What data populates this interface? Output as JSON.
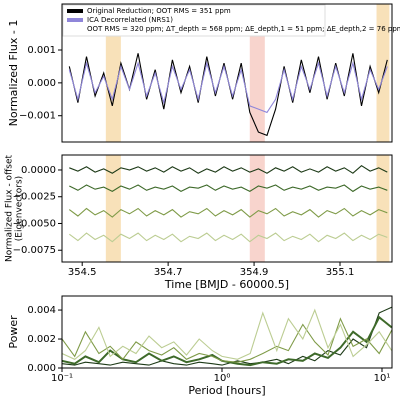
{
  "chart_data": [
    {
      "type": "line",
      "ylabel": "Normalized Flux - 1",
      "x": [
        354.47,
        354.49,
        354.51,
        354.53,
        354.55,
        354.57,
        354.59,
        354.61,
        354.63,
        354.65,
        354.67,
        354.69,
        354.71,
        354.73,
        354.75,
        354.77,
        354.79,
        354.81,
        354.83,
        354.85,
        354.87,
        354.89,
        354.91,
        354.93,
        354.95,
        354.97,
        354.99,
        355.01,
        355.03,
        355.05,
        355.07,
        355.09,
        355.11,
        355.13,
        355.15,
        355.17,
        355.19,
        355.21
      ],
      "series": [
        {
          "name": "Original Reduction; OOT RMS = 351 ppm",
          "color": "#000000",
          "values": [
            0.0005,
            -0.0006,
            0.0008,
            -0.0004,
            0.0003,
            -0.0007,
            0.0006,
            -0.0002,
            0.0009,
            -0.0005,
            0.0004,
            -0.0008,
            0.0007,
            -0.0003,
            0.0005,
            -0.0006,
            0.0008,
            -0.0004,
            0.0006,
            -0.0005,
            0.0006,
            -0.0009,
            -0.0015,
            -0.0016,
            -0.0008,
            0.0005,
            -0.0006,
            0.0007,
            -0.0003,
            0.0008,
            -0.0005,
            0.0006,
            -0.0004,
            0.0009,
            -0.0007,
            0.0005,
            -0.0003,
            0.0007
          ]
        },
        {
          "name": "ICA Decorrelated (NRS1)",
          "color": "#8f86d9",
          "values": [
            0.0004,
            -0.0005,
            0.0006,
            -0.0003,
            0.0002,
            -0.0005,
            0.0005,
            -0.0002,
            0.0006,
            -0.0004,
            0.0003,
            -0.0006,
            0.0005,
            -0.0002,
            0.0004,
            -0.0005,
            0.0006,
            -0.0003,
            0.0005,
            -0.0004,
            0.0004,
            -0.0007,
            -0.0008,
            -0.0009,
            -0.0005,
            0.0004,
            -0.0005,
            0.0005,
            -0.0002,
            0.0006,
            -0.0004,
            0.0005,
            -0.0003,
            0.0006,
            -0.0005,
            0.0004,
            -0.0002,
            0.0005
          ]
        }
      ],
      "legend_note": "OOT RMS = 320 ppm; ΔT_depth = 568 ppm; ΔE_depth,1 = 51 ppm; ΔE_depth,2 = 76 ppm",
      "highlights": [
        {
          "xlim": [
            354.555,
            354.59
          ],
          "color": "#f6d9a8"
        },
        {
          "xlim": [
            354.89,
            354.925
          ],
          "color": "#f6c9c0"
        },
        {
          "xlim": [
            355.185,
            355.215
          ],
          "color": "#f6d9a8"
        }
      ],
      "xlim": [
        354.453,
        355.221
      ],
      "ylim": [
        -0.0018,
        0.0024
      ],
      "yticks": [
        {
          "value": -0.001,
          "label": "−0.001"
        },
        {
          "value": 0,
          "label": "0.000"
        },
        {
          "value": 0.001,
          "label": "0.001"
        }
      ]
    },
    {
      "type": "line",
      "ylabel": [
        "Normalized Flux - offset",
        "(Eigenvectors)"
      ],
      "xlabel": "Time [BMJD - 60000.5]",
      "x": [
        354.47,
        354.49,
        354.51,
        354.53,
        354.55,
        354.57,
        354.59,
        354.61,
        354.63,
        354.65,
        354.67,
        354.69,
        354.71,
        354.73,
        354.75,
        354.77,
        354.79,
        354.81,
        354.83,
        354.85,
        354.87,
        354.89,
        354.91,
        354.93,
        354.95,
        354.97,
        354.99,
        355.01,
        355.03,
        355.05,
        355.07,
        355.09,
        355.11,
        355.13,
        355.15,
        355.17,
        355.19,
        355.21
      ],
      "series": [
        {
          "color": "#1d3a17",
          "values": [
            0.0002,
            -0.0001,
            0.0003,
            -0.0002,
            0.0001,
            -0.0003,
            0.0002,
            0,
            0.0003,
            -0.0001,
            0.0002,
            -0.0002,
            0.0003,
            -0.0001,
            0.0002,
            -0.0003,
            0.0001,
            -0.0002,
            0.0003,
            -0.0001,
            0.0002,
            -0.0002,
            0.0001,
            -0.0003,
            0.0002,
            -0.0001,
            0.0003,
            -0.0002,
            0.0001,
            -0.0002,
            0.0003,
            -0.0001,
            0.0002,
            -0.0003,
            0.0004,
            -0.0001,
            0.0002,
            -0.0002
          ]
        },
        {
          "color": "#3e6a2a",
          "values": [
            -0.0015,
            -0.0019,
            -0.0014,
            -0.0018,
            -0.0016,
            -0.002,
            -0.0015,
            -0.0018,
            -0.0014,
            -0.0019,
            -0.0016,
            -0.0018,
            -0.0015,
            -0.002,
            -0.0016,
            -0.0017,
            -0.0014,
            -0.0019,
            -0.0015,
            -0.0018,
            -0.0016,
            -0.002,
            -0.0015,
            -0.0017,
            -0.0014,
            -0.0019,
            -0.0016,
            -0.0018,
            -0.0015,
            -0.0019,
            -0.0016,
            -0.0017,
            -0.0014,
            -0.002,
            -0.0015,
            -0.0018,
            -0.0016,
            -0.0019
          ]
        },
        {
          "color": "#7f9b48",
          "values": [
            -0.0037,
            -0.0043,
            -0.0036,
            -0.0042,
            -0.0038,
            -0.0044,
            -0.0037,
            -0.0041,
            -0.0036,
            -0.0043,
            -0.0038,
            -0.0042,
            -0.0037,
            -0.0044,
            -0.0039,
            -0.0041,
            -0.0036,
            -0.0043,
            -0.0038,
            -0.0042,
            -0.0037,
            -0.0044,
            -0.0038,
            -0.0041,
            -0.0036,
            -0.0043,
            -0.0039,
            -0.0042,
            -0.0037,
            -0.0044,
            -0.0038,
            -0.0041,
            -0.0036,
            -0.0043,
            -0.0038,
            -0.0042,
            -0.0037,
            -0.004
          ]
        },
        {
          "color": "#bccd93",
          "values": [
            -0.006,
            -0.0066,
            -0.0059,
            -0.0065,
            -0.0061,
            -0.0067,
            -0.006,
            -0.0064,
            -0.0059,
            -0.0066,
            -0.0061,
            -0.0065,
            -0.006,
            -0.0067,
            -0.0062,
            -0.0064,
            -0.0059,
            -0.0066,
            -0.0061,
            -0.0065,
            -0.006,
            -0.0067,
            -0.0061,
            -0.0064,
            -0.0059,
            -0.0066,
            -0.0062,
            -0.0065,
            -0.006,
            -0.0067,
            -0.0061,
            -0.0064,
            -0.0059,
            -0.0066,
            -0.0061,
            -0.0065,
            -0.006,
            -0.0063
          ]
        }
      ],
      "highlights": [
        {
          "xlim": [
            354.555,
            354.59
          ],
          "color": "#f6d9a8"
        },
        {
          "xlim": [
            354.89,
            354.925
          ],
          "color": "#f6c9c0"
        },
        {
          "xlim": [
            355.185,
            355.215
          ],
          "color": "#f6d9a8"
        }
      ],
      "xlim": [
        354.453,
        355.221
      ],
      "ylim": [
        -0.0086,
        0.0014
      ],
      "xticks": [
        354.5,
        354.7,
        354.9,
        355.1
      ],
      "yticks": [
        {
          "value": 0,
          "label": "0.0000"
        },
        {
          "value": -0.0025,
          "label": "−0.0025"
        },
        {
          "value": -0.005,
          "label": "−0.0050"
        },
        {
          "value": -0.0075,
          "label": "−0.0075"
        }
      ]
    },
    {
      "type": "line",
      "ylabel": "Power",
      "xlabel": "Period [hours]",
      "xscale": "log",
      "x": [
        0.1,
        0.12,
        0.14,
        0.17,
        0.2,
        0.24,
        0.29,
        0.35,
        0.42,
        0.5,
        0.6,
        0.72,
        0.87,
        1.0,
        1.25,
        1.5,
        1.8,
        2.2,
        2.6,
        3.2,
        3.8,
        4.6,
        5.5,
        6.6,
        8,
        9.6,
        11.5
      ],
      "series": [
        {
          "color": "#1d3a17",
          "values": [
            0.0003,
            0.0002,
            0.0004,
            0.0003,
            0.0002,
            0.0004,
            0.0003,
            0.0002,
            0.0005,
            0.0003,
            0.0002,
            0.0004,
            0.0003,
            0.0002,
            0.0005,
            0.0003,
            0.0004,
            0.0006,
            0.0003,
            0.0008,
            0.0005,
            0.0012,
            0.0009,
            0.002,
            0.0014,
            0.0038,
            0.0042
          ]
        },
        {
          "color": "#3e6a2a",
          "values": [
            0.0005,
            0.0003,
            0.0008,
            0.0004,
            0.0012,
            0.0006,
            0.0004,
            0.001,
            0.0005,
            0.0008,
            0.0004,
            0.0006,
            0.0009,
            0.0005,
            0.0003,
            0.0002,
            0.0004,
            0.0003,
            0.0006,
            0.0005,
            0.001,
            0.0007,
            0.0014,
            0.0025,
            0.0018,
            0.0035,
            0.0028
          ]
        },
        {
          "color": "#7f9b48",
          "values": [
            0.002,
            0.0008,
            0.0025,
            0.001,
            0.0015,
            0.0006,
            0.0018,
            0.0012,
            0.0009,
            0.0014,
            0.0006,
            0.001,
            0.0008,
            0.0005,
            0.0004,
            0.0006,
            0.001,
            0.0015,
            0.0012,
            0.003,
            0.0018,
            0.0009,
            0.0034,
            0.0015,
            0.002,
            0.001,
            0.0026
          ]
        },
        {
          "color": "#bccd93",
          "values": [
            0.001,
            0.0006,
            0.0012,
            0.0028,
            0.0008,
            0.0015,
            0.001,
            0.0022,
            0.0014,
            0.0018,
            0.0009,
            0.002,
            0.0012,
            0.0008,
            0.0006,
            0.001,
            0.0038,
            0.0012,
            0.0034,
            0.002,
            0.004,
            0.0014,
            0.003,
            0.0008,
            0.0016,
            0.0025,
            0.0012
          ]
        }
      ],
      "xlim": [
        0.1,
        11.55
      ],
      "ylim": [
        0,
        0.00497
      ],
      "xticks": [
        {
          "value": 0.1,
          "label": "10⁻¹"
        },
        {
          "value": 1,
          "label": "10⁰"
        },
        {
          "value": 10,
          "label": "10¹"
        }
      ],
      "yticks": [
        {
          "value": 0,
          "label": "0.000"
        },
        {
          "value": 0.002,
          "label": "0.002"
        },
        {
          "value": 0.004,
          "label": "0.004"
        }
      ]
    }
  ]
}
